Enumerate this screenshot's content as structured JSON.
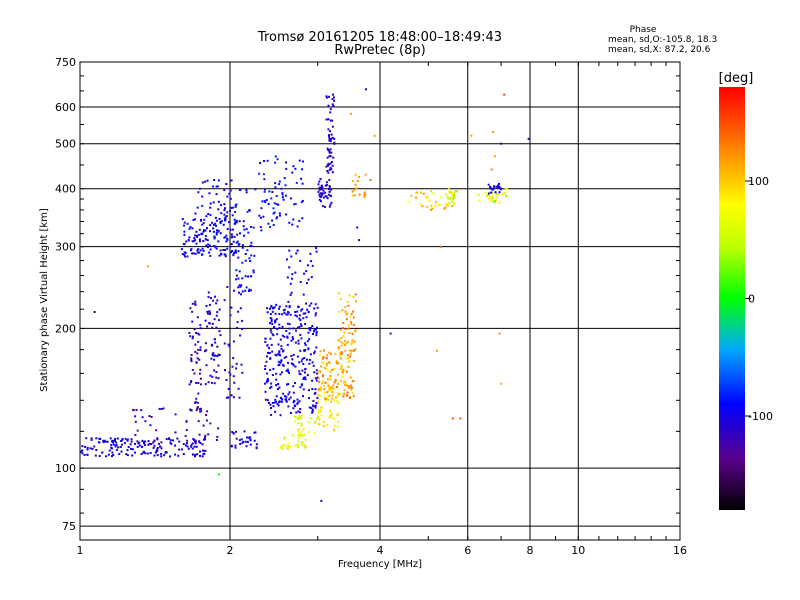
{
  "chart_data": {
    "type": "scatter",
    "title": "Tromsø 20161205 18:48:00–18:49:43",
    "subtitle": "RwPretec (8p)",
    "xlabel": "Frequency [MHz]",
    "ylabel": "Stationary phase Virtual Height [km]",
    "x_scale": "log",
    "y_scale": "log",
    "xlim": [
      1,
      16
    ],
    "ylim": [
      70,
      750
    ],
    "x_ticks": [
      1,
      2,
      4,
      6,
      8,
      10,
      16
    ],
    "x_tick_labels": [
      "1",
      "2",
      "4",
      "6",
      "8",
      "10",
      "16"
    ],
    "y_ticks": [
      75,
      100,
      200,
      300,
      400,
      500,
      600,
      750
    ],
    "y_tick_labels": [
      "75",
      "100",
      "200",
      "300",
      "400",
      "500",
      "600",
      "750"
    ],
    "grid": true,
    "phase_info": {
      "title": "Phase",
      "line1": "mean, sd,O:-105.8, 18.3",
      "line2": "mean, sd,X:  87.2, 20.6"
    },
    "colorbar": {
      "label": "[deg]",
      "range": [
        -180,
        180
      ],
      "ticks": [
        100,
        0,
        -100
      ],
      "tick_labels": [
        "100",
        "0",
        "-100"
      ]
    },
    "clusters": [
      {
        "f": [
          1.0,
          1.8
        ],
        "h": [
          106,
          116
        ],
        "phase": [
          -110,
          -90
        ],
        "n": 170,
        "shape": "low"
      },
      {
        "f": [
          1.25,
          1.9
        ],
        "h": [
          112,
          135
        ],
        "phase": [
          -140,
          -100
        ],
        "n": 50,
        "shape": "box"
      },
      {
        "f": [
          1.65,
          1.75
        ],
        "h": [
          130,
          230
        ],
        "phase": [
          -130,
          -100
        ],
        "n": 55,
        "shape": "box"
      },
      {
        "f": [
          1.78,
          1.92
        ],
        "h": [
          150,
          240
        ],
        "phase": [
          -120,
          -90
        ],
        "n": 60,
        "shape": "box"
      },
      {
        "f": [
          1.95,
          2.12
        ],
        "h": [
          140,
          260
        ],
        "phase": [
          -120,
          -90
        ],
        "n": 40,
        "shape": "box"
      },
      {
        "f": [
          1.6,
          2.1
        ],
        "h": [
          285,
          345
        ],
        "phase": [
          -110,
          -80
        ],
        "n": 150,
        "shape": "box"
      },
      {
        "f": [
          1.7,
          2.05
        ],
        "h": [
          340,
          420
        ],
        "phase": [
          -110,
          -80
        ],
        "n": 50,
        "shape": "box"
      },
      {
        "f": [
          2.0,
          2.3
        ],
        "h": [
          110,
          120
        ],
        "phase": [
          -110,
          -90
        ],
        "n": 30,
        "shape": "box"
      },
      {
        "f": [
          2.05,
          2.25
        ],
        "h": [
          240,
          400
        ],
        "phase": [
          -100,
          -80
        ],
        "n": 55,
        "shape": "box"
      },
      {
        "f": [
          2.28,
          2.82
        ],
        "h": [
          320,
          475
        ],
        "phase": [
          -105,
          -75
        ],
        "n": 75,
        "shape": "box"
      },
      {
        "f": [
          2.35,
          3.0
        ],
        "h": [
          130,
          225
        ],
        "phase": [
          -110,
          -85
        ],
        "n": 300,
        "shape": "box"
      },
      {
        "f": [
          2.6,
          3.0
        ],
        "h": [
          210,
          300
        ],
        "phase": [
          -105,
          -85
        ],
        "n": 40,
        "shape": "box"
      },
      {
        "f": [
          2.5,
          2.85
        ],
        "h": [
          110,
          118
        ],
        "phase": [
          50,
          100
        ],
        "n": 30,
        "shape": "box"
      },
      {
        "f": [
          2.7,
          3.05
        ],
        "h": [
          115,
          130
        ],
        "phase": [
          30,
          100
        ],
        "n": 30,
        "shape": "box"
      },
      {
        "f": [
          3.0,
          3.3
        ],
        "h": [
          120,
          150
        ],
        "phase": [
          60,
          110
        ],
        "n": 40,
        "shape": "box"
      },
      {
        "f": [
          3.0,
          3.55
        ],
        "h": [
          140,
          180
        ],
        "phase": [
          80,
          150
        ],
        "n": 130,
        "shape": "box"
      },
      {
        "f": [
          3.3,
          3.6
        ],
        "h": [
          175,
          240
        ],
        "phase": [
          90,
          140
        ],
        "n": 60,
        "shape": "box"
      },
      {
        "f": [
          3.0,
          3.2
        ],
        "h": [
          365,
          420
        ],
        "phase": [
          -120,
          -90
        ],
        "n": 45,
        "shape": "box"
      },
      {
        "f": [
          3.12,
          3.24
        ],
        "h": [
          430,
          640
        ],
        "phase": [
          -120,
          -100
        ],
        "n": 60,
        "shape": "box"
      },
      {
        "f": [
          3.5,
          3.9
        ],
        "h": [
          380,
          430
        ],
        "phase": [
          100,
          140
        ],
        "n": 18,
        "shape": "box"
      },
      {
        "f": [
          4.5,
          5.7
        ],
        "h": [
          360,
          400
        ],
        "phase": [
          60,
          130
        ],
        "n": 35,
        "shape": "box"
      },
      {
        "f": [
          5.4,
          5.7
        ],
        "h": [
          370,
          400
        ],
        "phase": [
          20,
          80
        ],
        "n": 20,
        "shape": "box"
      },
      {
        "f": [
          6.3,
          7.2
        ],
        "h": [
          370,
          400
        ],
        "phase": [
          20,
          100
        ],
        "n": 30,
        "shape": "box"
      },
      {
        "f": [
          6.6,
          7.0
        ],
        "h": [
          390,
          410
        ],
        "phase": [
          -120,
          -90
        ],
        "n": 20,
        "shape": "box"
      }
    ],
    "points": [
      {
        "f": 1.07,
        "h": 217,
        "phase": -150
      },
      {
        "f": 1.37,
        "h": 272,
        "phase": 120
      },
      {
        "f": 1.9,
        "h": 97,
        "phase": 0
      },
      {
        "f": 3.05,
        "h": 85,
        "phase": -110
      },
      {
        "f": 4.2,
        "h": 195,
        "phase": -120
      },
      {
        "f": 5.2,
        "h": 179,
        "phase": 120
      },
      {
        "f": 5.3,
        "h": 300,
        "phase": 150
      },
      {
        "f": 5.6,
        "h": 128,
        "phase": 150
      },
      {
        "f": 5.8,
        "h": 128,
        "phase": 150
      },
      {
        "f": 6.95,
        "h": 195,
        "phase": 120
      },
      {
        "f": 7.0,
        "h": 152,
        "phase": 110
      },
      {
        "f": 7.1,
        "h": 638,
        "phase": 160
      },
      {
        "f": 7.0,
        "h": 500,
        "phase": -110
      },
      {
        "f": 7.95,
        "h": 512,
        "phase": -120
      },
      {
        "f": 3.75,
        "h": 655,
        "phase": -120
      },
      {
        "f": 3.5,
        "h": 580,
        "phase": 120
      },
      {
        "f": 3.9,
        "h": 520,
        "phase": 120
      },
      {
        "f": 3.6,
        "h": 330,
        "phase": -110
      },
      {
        "f": 3.63,
        "h": 310,
        "phase": -110
      },
      {
        "f": 6.1,
        "h": 520,
        "phase": 120
      },
      {
        "f": 6.75,
        "h": 530,
        "phase": 120
      },
      {
        "f": 6.8,
        "h": 470,
        "phase": 120
      },
      {
        "f": 6.7,
        "h": 440,
        "phase": 130
      }
    ]
  }
}
